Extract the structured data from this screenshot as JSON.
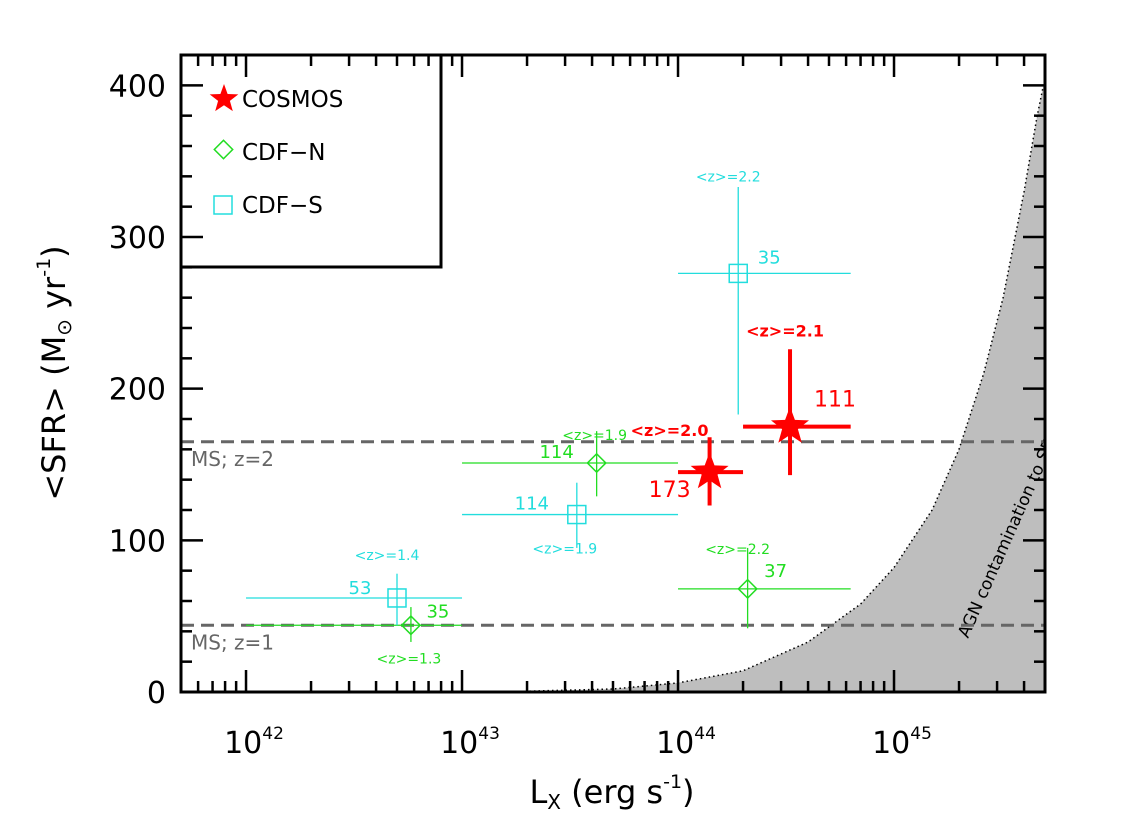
{
  "chart_data": {
    "type": "scatter",
    "xlabel": {
      "main": "L",
      "sub": "X",
      "rest": " (erg s",
      "exp": "-1",
      "close": ")"
    },
    "ylabel": {
      "main": "<SFR> (M",
      "sym": "⊙",
      "rest": " yr",
      "exp": "-1",
      "close": ")"
    },
    "xscale": "log",
    "xlim": [
      5e+41,
      5e+45
    ],
    "ylim": [
      0,
      420
    ],
    "xticks": [
      {
        "value": 1e+42,
        "base": "10",
        "exp": "42"
      },
      {
        "value": 1e+43,
        "base": "10",
        "exp": "43"
      },
      {
        "value": 1e+44,
        "base": "10",
        "exp": "44"
      },
      {
        "value": 1e+45,
        "base": "10",
        "exp": "45"
      }
    ],
    "yticks": [
      {
        "value": 0,
        "label": "0"
      },
      {
        "value": 100,
        "label": "100"
      },
      {
        "value": 200,
        "label": "200"
      },
      {
        "value": 300,
        "label": "300"
      },
      {
        "value": 400,
        "label": "400"
      }
    ],
    "legend": {
      "position": "top-left",
      "entries": [
        {
          "name": "COSMOS",
          "marker": "star",
          "color": "#ff0000"
        },
        {
          "name": "CDF−N",
          "marker": "diamond",
          "color": "#22dd22"
        },
        {
          "name": "CDF−S",
          "marker": "square",
          "color": "#22dddd"
        }
      ]
    },
    "series": [
      {
        "name": "COSMOS",
        "marker": "star",
        "color": "#ff0000",
        "points": [
          {
            "x": 1.4e+44,
            "y": 145,
            "xlo": 1e+44,
            "xhi": 2e+44,
            "ylo": 123,
            "yhi": 168,
            "count": "173",
            "z": "<z>=2.0"
          },
          {
            "x": 3.3e+44,
            "y": 175,
            "xlo": 2e+44,
            "xhi": 6.3e+44,
            "ylo": 143,
            "yhi": 226,
            "count": "111",
            "z": "<z>=2.1"
          }
        ]
      },
      {
        "name": "CDF-N",
        "marker": "diamond",
        "color": "#22dd22",
        "points": [
          {
            "x": 5.8e+42,
            "y": 44,
            "xlo": 1e+42,
            "xhi": 1e+43,
            "ylo": 33,
            "yhi": 56,
            "count": "35",
            "z": "<z>=1.3"
          },
          {
            "x": 4.2e+43,
            "y": 151,
            "xlo": 1e+43,
            "xhi": 1e+44,
            "ylo": 129,
            "yhi": 172,
            "count": "114",
            "z": "<z>=1.9"
          },
          {
            "x": 2.1e+44,
            "y": 68,
            "xlo": 1e+44,
            "xhi": 6.3e+44,
            "ylo": 42,
            "yhi": 95,
            "count": "37",
            "z": "<z>=2.2"
          }
        ]
      },
      {
        "name": "CDF-S",
        "marker": "square",
        "color": "#22dddd",
        "points": [
          {
            "x": 5e+42,
            "y": 62,
            "xlo": 1e+42,
            "xhi": 1e+43,
            "ylo": 44,
            "yhi": 78,
            "count": "53",
            "z": "<z>=1.4"
          },
          {
            "x": 3.4e+43,
            "y": 117,
            "xlo": 1e+43,
            "xhi": 1e+44,
            "ylo": 95,
            "yhi": 138,
            "count": "114",
            "z": "<z>=1.9"
          },
          {
            "x": 1.9e+44,
            "y": 276,
            "xlo": 1e+44,
            "xhi": 6.3e+44,
            "ylo": 183,
            "yhi": 333,
            "count": "35",
            "z": "<z>=2.2"
          }
        ]
      }
    ],
    "reference_lines": [
      {
        "y": 44,
        "label": "MS; z=1",
        "style": "dashed",
        "color": "#666666"
      },
      {
        "y": 165,
        "label": "MS; z=2",
        "style": "dashed",
        "color": "#666666"
      }
    ],
    "shaded_region": {
      "label": "AGN contamination to SFR",
      "fill": "#bebebe",
      "curve": [
        [
          1e+43,
          0
        ],
        [
          2e+43,
          0.5
        ],
        [
          5e+43,
          2
        ],
        [
          1e+44,
          6
        ],
        [
          2e+44,
          14
        ],
        [
          4e+44,
          33
        ],
        [
          7e+44,
          58
        ],
        [
          1e+45,
          82
        ],
        [
          1.5e+45,
          120
        ],
        [
          2e+45,
          160
        ],
        [
          2.6e+45,
          210
        ],
        [
          3.2e+45,
          260
        ],
        [
          4e+45,
          330
        ],
        [
          4.6e+45,
          380
        ],
        [
          5e+45,
          405
        ]
      ]
    }
  }
}
